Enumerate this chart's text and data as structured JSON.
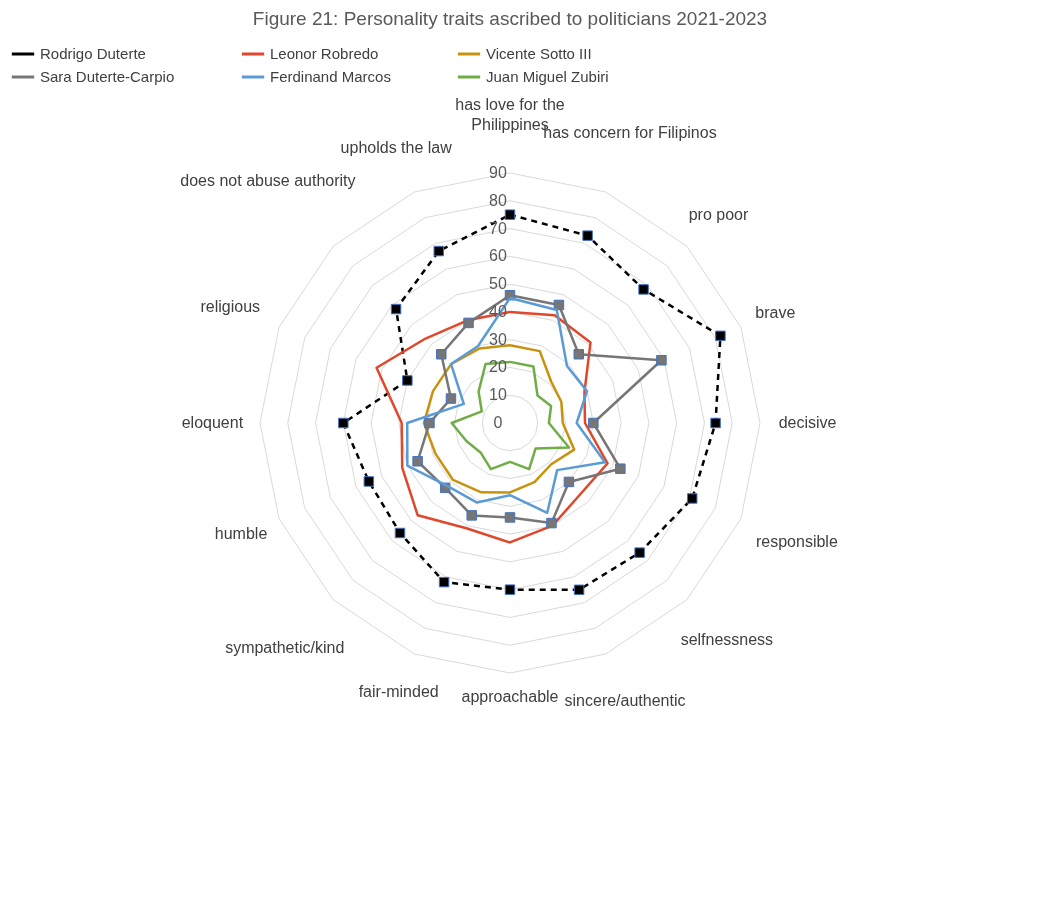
{
  "chart_data": {
    "type": "radar",
    "title": "Figure 21: Personality traits ascribed to politicians 2021-2023",
    "categories": [
      "has love for the Philippines",
      "has concern for Filipinos",
      "pro poor",
      "brave",
      "decisive",
      "responsible",
      "selfnessness",
      "sincere/authentic",
      "approachable",
      "fair-minded",
      "sympathetic/kind",
      "humble",
      "eloquent",
      "religious",
      "does not abuse authority",
      "upholds the law"
    ],
    "series": [
      {
        "name": "Rodrigo Duterte",
        "color": "#000000",
        "marker": "square",
        "line_style": "dashed",
        "values": [
          75,
          73,
          68,
          82,
          74,
          71,
          66,
          65,
          60,
          62,
          56,
          55,
          60,
          40,
          58,
          67
        ]
      },
      {
        "name": "Leonor Robredo",
        "color": "#e0472b",
        "marker": "none",
        "line_style": "solid",
        "values": [
          40,
          42,
          41,
          29,
          27,
          38,
          36,
          40,
          43,
          41,
          47,
          42,
          39,
          52,
          43,
          40
        ]
      },
      {
        "name": "Vicente Sotto III",
        "color": "#c9920e",
        "marker": "none",
        "line_style": "solid",
        "values": [
          28,
          28,
          21,
          20,
          19,
          25,
          21,
          23,
          25,
          27,
          29,
          29,
          31,
          30,
          30,
          29
        ]
      },
      {
        "name": "Sara Duterte-Carpio",
        "color": "#767676",
        "marker": "square",
        "line_style": "solid",
        "values": [
          46,
          46,
          35,
          59,
          30,
          43,
          30,
          39,
          34,
          36,
          33,
          36,
          29,
          23,
          35,
          39
        ]
      },
      {
        "name": "Ferdinand Marcos",
        "color": "#5b9bd5",
        "marker": "none",
        "line_style": "solid",
        "values": [
          45,
          44,
          29,
          30,
          24,
          37,
          24,
          35,
          26,
          31,
          32,
          40,
          37,
          18,
          30,
          30
        ]
      },
      {
        "name": "Juan Miguel Zubiri",
        "color": "#70ad47",
        "marker": "none",
        "line_style": "solid",
        "values": [
          22,
          22,
          14,
          16,
          14,
          23,
          13,
          18,
          14,
          18,
          15,
          17,
          21,
          11,
          16,
          23
        ]
      }
    ],
    "ylim": [
      0,
      90
    ],
    "yticks": [
      0,
      10,
      20,
      30,
      40,
      50,
      60,
      70,
      80,
      90
    ],
    "grid": true,
    "legend": "top"
  }
}
